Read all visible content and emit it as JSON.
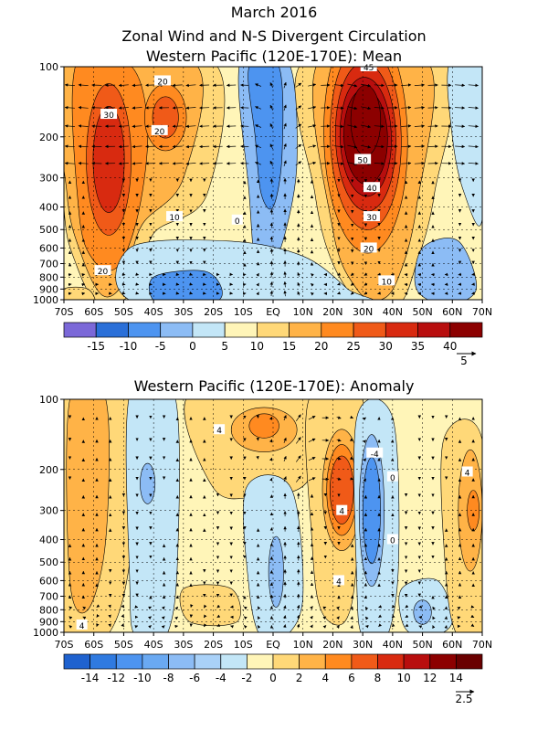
{
  "figure": {
    "title_line1": "March 2016",
    "title_line2": "Zonal Wind and N-S Divergent Circulation"
  },
  "colors": {
    "neg": [
      "#7b68d8",
      "#2a6fd8",
      "#4d94f0",
      "#8cbcf5",
      "#c3e6f7"
    ],
    "pos": [
      "#fff5b8",
      "#ffd878",
      "#ffb347",
      "#ff8a20",
      "#f05a18",
      "#d82a10",
      "#b80e0e",
      "#8c0000"
    ]
  },
  "chart_data": [
    {
      "type": "heatmap",
      "title": "Western Pacific (120E-170E): Mean",
      "x_ticks": [
        "70S",
        "60S",
        "50S",
        "40S",
        "30S",
        "20S",
        "10S",
        "EQ",
        "10N",
        "20N",
        "30N",
        "40N",
        "50N",
        "60N",
        "70N"
      ],
      "y_ticks": [
        "100",
        "200",
        "300",
        "400",
        "500",
        "600",
        "700",
        "800",
        "900",
        "1000"
      ],
      "y_levels": [
        100,
        200,
        300,
        400,
        500,
        600,
        700,
        800,
        900,
        1000
      ],
      "xlim": [
        -70,
        70
      ],
      "ylim": [
        1000,
        100
      ],
      "y_scale": "log",
      "colorbar_levels": [
        -20,
        -15,
        -10,
        -5,
        0,
        5,
        10,
        15,
        20,
        25,
        30,
        35,
        40,
        45
      ],
      "colorbar_labels": [
        "-15",
        "-10",
        "-5",
        "0",
        "5",
        "10",
        "15",
        "20",
        "25",
        "30",
        "35",
        "40"
      ],
      "vector_reference": "5",
      "contour_labels": [
        {
          "text": "30",
          "lat": -55,
          "p": 160
        },
        {
          "text": "20",
          "lat": -37,
          "p": 115
        },
        {
          "text": "20",
          "lat": -38,
          "p": 188
        },
        {
          "text": "10",
          "lat": -33,
          "p": 440
        },
        {
          "text": "20",
          "lat": -57,
          "p": 750
        },
        {
          "text": "0",
          "lat": -12,
          "p": 455
        },
        {
          "text": "45",
          "lat": 32,
          "p": 100
        },
        {
          "text": "50",
          "lat": 30,
          "p": 250
        },
        {
          "text": "40",
          "lat": 33,
          "p": 330
        },
        {
          "text": "30",
          "lat": 33,
          "p": 440
        },
        {
          "text": "20",
          "lat": 32,
          "p": 600
        },
        {
          "text": "10",
          "lat": 38,
          "p": 830
        }
      ],
      "features": [
        {
          "kind": "jet",
          "value": 32,
          "lat": -55,
          "p": 250
        },
        {
          "kind": "jet",
          "value": 24,
          "lat": -36,
          "p": 160
        },
        {
          "kind": "jet",
          "value": 48,
          "lat": 30,
          "p": 190
        },
        {
          "kind": "easterly",
          "value": -9,
          "lat": -3,
          "p": 170
        },
        {
          "kind": "easterly",
          "value": -6,
          "lat": -30,
          "p": 880
        },
        {
          "kind": "easterly",
          "value": -5,
          "lat": 10,
          "p": 800
        }
      ]
    },
    {
      "type": "heatmap",
      "title": "Western Pacific (120E-170E): Anomaly",
      "x_ticks": [
        "70S",
        "60S",
        "50S",
        "40S",
        "30S",
        "20S",
        "10S",
        "EQ",
        "10N",
        "20N",
        "30N",
        "40N",
        "50N",
        "60N",
        "70N"
      ],
      "y_ticks": [
        "100",
        "200",
        "300",
        "400",
        "500",
        "600",
        "700",
        "800",
        "900",
        "1000"
      ],
      "y_levels": [
        100,
        200,
        300,
        400,
        500,
        600,
        700,
        800,
        900,
        1000
      ],
      "xlim": [
        -70,
        70
      ],
      "ylim": [
        1000,
        100
      ],
      "y_scale": "log",
      "colorbar_levels": [
        -16,
        -14,
        -12,
        -10,
        -8,
        -6,
        -4,
        -2,
        0,
        2,
        4,
        6,
        8,
        10,
        12,
        14,
        16
      ],
      "colorbar_labels": [
        "-14",
        "-12",
        "-10",
        "-8",
        "-6",
        "-4",
        "-2",
        "0",
        "2",
        "4",
        "6",
        "8",
        "10",
        "12",
        "14"
      ],
      "vector_reference": "2.5",
      "contour_labels": [
        {
          "text": "4",
          "lat": -18,
          "p": 135
        },
        {
          "text": "4",
          "lat": 23,
          "p": 300
        },
        {
          "text": "4",
          "lat": 22,
          "p": 600
        },
        {
          "text": "-4",
          "lat": 34,
          "p": 170
        },
        {
          "text": "0",
          "lat": 40,
          "p": 215
        },
        {
          "text": "0",
          "lat": 40,
          "p": 400
        },
        {
          "text": "4",
          "lat": 65,
          "p": 205
        },
        {
          "text": "4",
          "lat": -64,
          "p": 930
        }
      ],
      "features": [
        {
          "kind": "positive",
          "value": 8,
          "lat": 23,
          "p": 250
        },
        {
          "kind": "positive",
          "value": 5,
          "lat": -5,
          "p": 135
        },
        {
          "kind": "positive",
          "value": 5,
          "lat": 66,
          "p": 300
        },
        {
          "kind": "negative",
          "value": -6,
          "lat": 33,
          "p": 320
        },
        {
          "kind": "negative",
          "value": -2,
          "lat": -43,
          "p": 400
        },
        {
          "kind": "negative",
          "value": -2,
          "lat": 7,
          "p": 420
        }
      ]
    }
  ]
}
